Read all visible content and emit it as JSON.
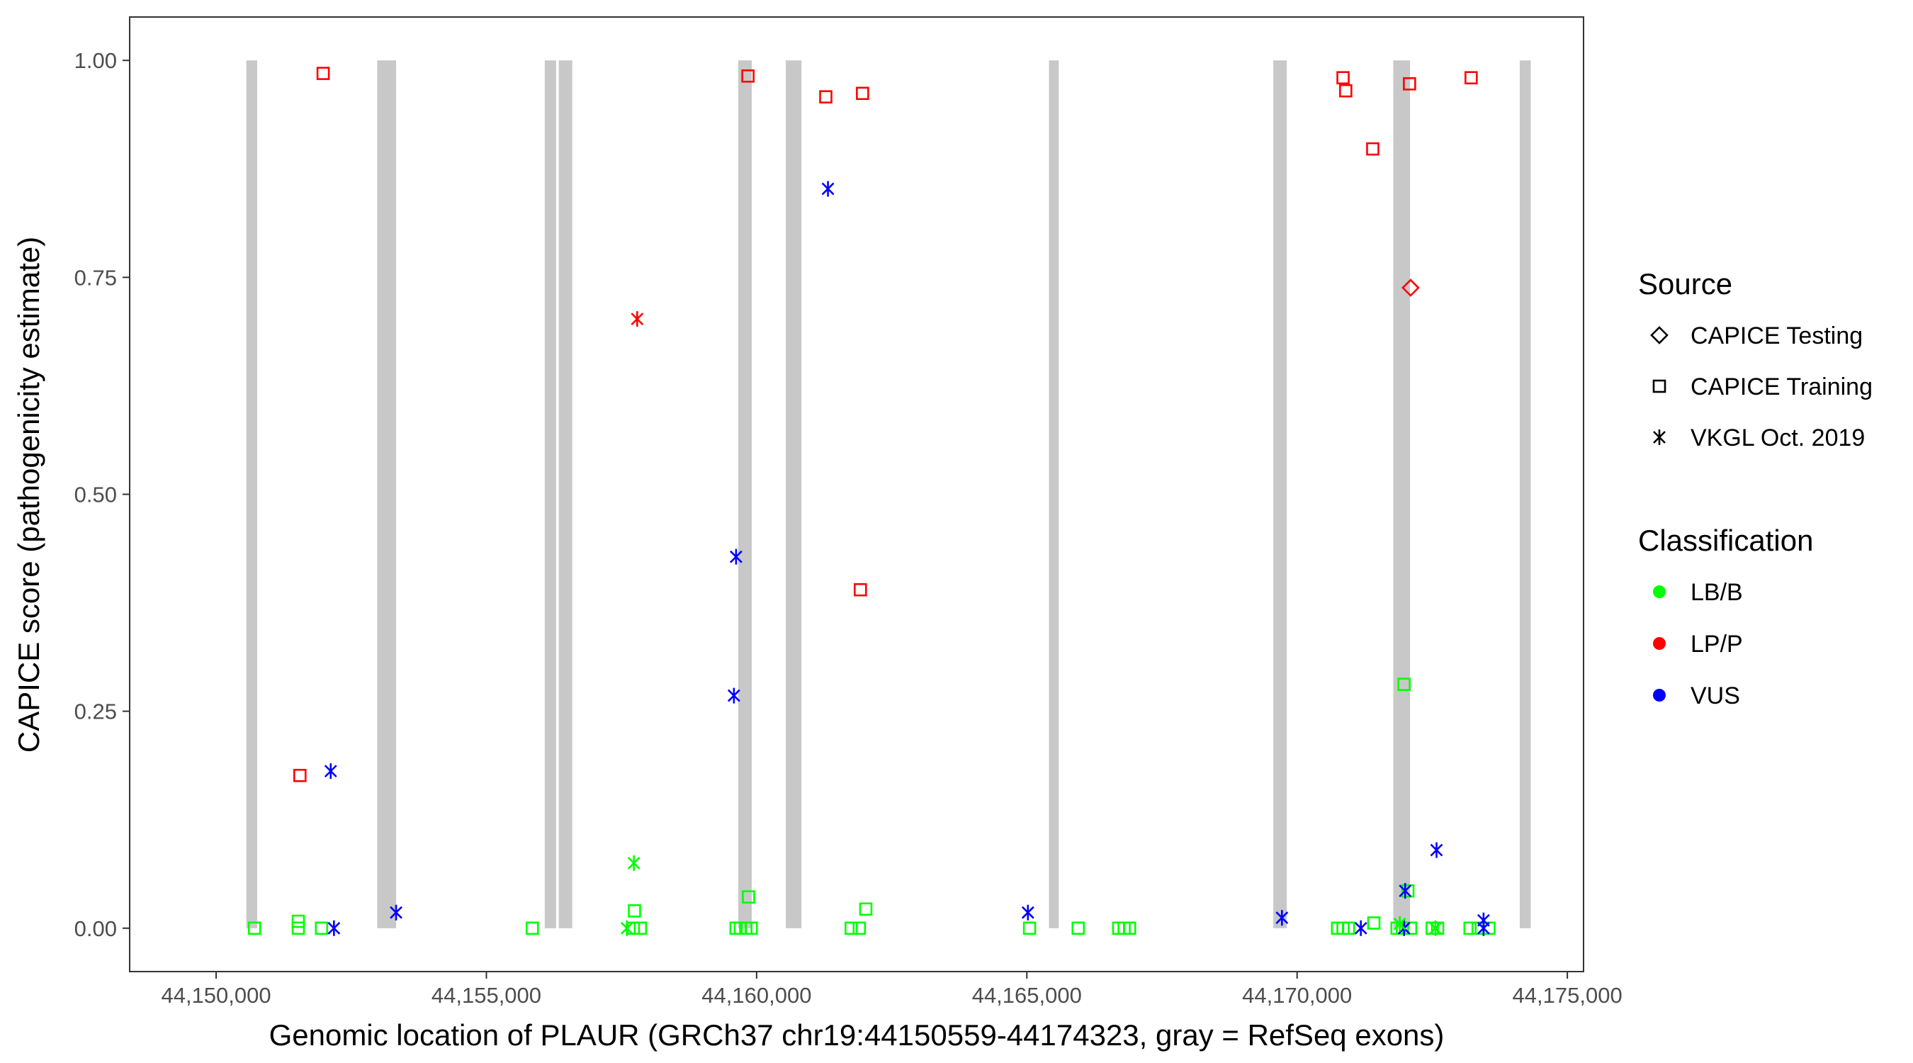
{
  "chart_data": {
    "type": "scatter",
    "xlabel": "Genomic location of PLAUR (GRCh37 chr19:44150559-44174323, gray = RefSeq exons)",
    "ylabel": "CAPICE score (pathogenicity estimate)",
    "xlim": [
      44148400,
      44175300
    ],
    "ylim": [
      -0.05,
      1.05
    ],
    "x_ticks": [
      44150000,
      44155000,
      44160000,
      44165000,
      44170000,
      44175000
    ],
    "x_tick_labels": [
      "44,150,000",
      "44,155,000",
      "44,160,000",
      "44,165,000",
      "44,170,000",
      "44,175,000"
    ],
    "y_ticks": [
      0,
      0.25,
      0.5,
      0.75,
      1.0
    ],
    "y_tick_labels": [
      "0.00",
      "0.25",
      "0.50",
      "0.75",
      "1.00"
    ],
    "grid": false,
    "legend_position": "right",
    "exons": [
      {
        "start": 44150559,
        "end": 44150759
      },
      {
        "start": 44152980,
        "end": 44153330
      },
      {
        "start": 44156080,
        "end": 44156290
      },
      {
        "start": 44156340,
        "end": 44156590
      },
      {
        "start": 44159660,
        "end": 44159910
      },
      {
        "start": 44160540,
        "end": 44160830
      },
      {
        "start": 44165410,
        "end": 44165590
      },
      {
        "start": 44169560,
        "end": 44169810
      },
      {
        "start": 44171780,
        "end": 44172090
      },
      {
        "start": 44174120,
        "end": 44174323
      }
    ],
    "legend": {
      "source_title": "Source",
      "source_items": [
        {
          "label": "CAPICE Testing",
          "shape": "diamond"
        },
        {
          "label": "CAPICE Training",
          "shape": "square"
        },
        {
          "label": "VKGL Oct. 2019",
          "shape": "asterisk"
        }
      ],
      "class_title": "Classification",
      "class_items": [
        {
          "label": "LB/B",
          "color": "#00ff00"
        },
        {
          "label": "LP/P",
          "color": "#ff0000"
        },
        {
          "label": "VUS",
          "color": "#0000ff"
        }
      ]
    },
    "colors": {
      "LB/B": "#00ff00",
      "LP/P": "#ff0000",
      "VUS": "#0000ff",
      "exon": "#c8c8c8"
    },
    "series": [
      {
        "name": "CAPICE Training",
        "shape": "square",
        "points": [
          {
            "x": 44151980,
            "y": 0.985,
            "c": "LP/P"
          },
          {
            "x": 44159840,
            "y": 0.982,
            "c": "LP/P"
          },
          {
            "x": 44161280,
            "y": 0.958,
            "c": "LP/P"
          },
          {
            "x": 44161960,
            "y": 0.962,
            "c": "LP/P"
          },
          {
            "x": 44170850,
            "y": 0.98,
            "c": "LP/P"
          },
          {
            "x": 44170900,
            "y": 0.965,
            "c": "LP/P"
          },
          {
            "x": 44172080,
            "y": 0.973,
            "c": "LP/P"
          },
          {
            "x": 44173220,
            "y": 0.98,
            "c": "LP/P"
          },
          {
            "x": 44171400,
            "y": 0.898,
            "c": "LP/P"
          },
          {
            "x": 44161920,
            "y": 0.39,
            "c": "LP/P"
          },
          {
            "x": 44151550,
            "y": 0.176,
            "c": "LP/P"
          },
          {
            "x": 44171980,
            "y": 0.281,
            "c": "LB/B"
          },
          {
            "x": 44159850,
            "y": 0.036,
            "c": "LB/B"
          },
          {
            "x": 44162020,
            "y": 0.022,
            "c": "LB/B"
          },
          {
            "x": 44157740,
            "y": 0.02,
            "c": "LB/B"
          },
          {
            "x": 44151520,
            "y": 0.008,
            "c": "LB/B"
          },
          {
            "x": 44172050,
            "y": 0.043,
            "c": "LB/B"
          },
          {
            "x": 44171420,
            "y": 0.006,
            "c": "LB/B"
          },
          {
            "x": 44150710,
            "y": 0.0,
            "c": "LB/B"
          },
          {
            "x": 44151520,
            "y": 0.0,
            "c": "LB/B"
          },
          {
            "x": 44151950,
            "y": 0.0,
            "c": "LB/B"
          },
          {
            "x": 44155850,
            "y": 0.0,
            "c": "LB/B"
          },
          {
            "x": 44157720,
            "y": 0.0,
            "c": "LB/B"
          },
          {
            "x": 44157850,
            "y": 0.0,
            "c": "LB/B"
          },
          {
            "x": 44159620,
            "y": 0.0,
            "c": "LB/B"
          },
          {
            "x": 44159700,
            "y": 0.0,
            "c": "LB/B"
          },
          {
            "x": 44159800,
            "y": 0.0,
            "c": "LB/B"
          },
          {
            "x": 44159900,
            "y": 0.0,
            "c": "LB/B"
          },
          {
            "x": 44161750,
            "y": 0.0,
            "c": "LB/B"
          },
          {
            "x": 44161900,
            "y": 0.0,
            "c": "LB/B"
          },
          {
            "x": 44165050,
            "y": 0.0,
            "c": "LB/B"
          },
          {
            "x": 44165950,
            "y": 0.0,
            "c": "LB/B"
          },
          {
            "x": 44166700,
            "y": 0.0,
            "c": "LB/B"
          },
          {
            "x": 44166800,
            "y": 0.0,
            "c": "LB/B"
          },
          {
            "x": 44166900,
            "y": 0.0,
            "c": "LB/B"
          },
          {
            "x": 44170750,
            "y": 0.0,
            "c": "LB/B"
          },
          {
            "x": 44170850,
            "y": 0.0,
            "c": "LB/B"
          },
          {
            "x": 44170950,
            "y": 0.0,
            "c": "LB/B"
          },
          {
            "x": 44171850,
            "y": 0.0,
            "c": "LB/B"
          },
          {
            "x": 44171950,
            "y": 0.0,
            "c": "LB/B"
          },
          {
            "x": 44172100,
            "y": 0.0,
            "c": "LB/B"
          },
          {
            "x": 44172500,
            "y": 0.0,
            "c": "LB/B"
          },
          {
            "x": 44172600,
            "y": 0.0,
            "c": "LB/B"
          },
          {
            "x": 44173200,
            "y": 0.0,
            "c": "LB/B"
          },
          {
            "x": 44173350,
            "y": 0.0,
            "c": "LB/B"
          },
          {
            "x": 44173550,
            "y": 0.0,
            "c": "LB/B"
          }
        ]
      },
      {
        "name": "CAPICE Testing",
        "shape": "diamond",
        "points": [
          {
            "x": 44172100,
            "y": 0.738,
            "c": "LP/P"
          }
        ]
      },
      {
        "name": "VKGL Oct. 2019",
        "shape": "asterisk",
        "points": [
          {
            "x": 44161320,
            "y": 0.852,
            "c": "VUS"
          },
          {
            "x": 44157790,
            "y": 0.702,
            "c": "LP/P"
          },
          {
            "x": 44159620,
            "y": 0.428,
            "c": "VUS"
          },
          {
            "x": 44159580,
            "y": 0.268,
            "c": "VUS"
          },
          {
            "x": 44152120,
            "y": 0.181,
            "c": "VUS"
          },
          {
            "x": 44172580,
            "y": 0.09,
            "c": "VUS"
          },
          {
            "x": 44157730,
            "y": 0.075,
            "c": "LB/B"
          },
          {
            "x": 44172000,
            "y": 0.043,
            "c": "VUS"
          },
          {
            "x": 44153330,
            "y": 0.018,
            "c": "VUS"
          },
          {
            "x": 44165020,
            "y": 0.018,
            "c": "VUS"
          },
          {
            "x": 44169720,
            "y": 0.012,
            "c": "VUS"
          },
          {
            "x": 44173450,
            "y": 0.009,
            "c": "VUS"
          },
          {
            "x": 44152180,
            "y": 0.0,
            "c": "VUS"
          },
          {
            "x": 44157600,
            "y": 0.0,
            "c": "LB/B"
          },
          {
            "x": 44171180,
            "y": 0.0,
            "c": "VUS"
          },
          {
            "x": 44171980,
            "y": 0.0,
            "c": "VUS"
          },
          {
            "x": 44171900,
            "y": 0.005,
            "c": "LB/B"
          },
          {
            "x": 44172560,
            "y": 0.0,
            "c": "LB/B"
          },
          {
            "x": 44173450,
            "y": 0.0,
            "c": "VUS"
          }
        ]
      }
    ]
  }
}
